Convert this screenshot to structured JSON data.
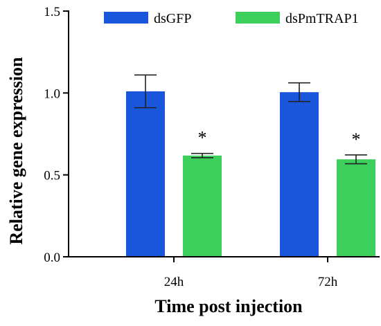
{
  "colors": {
    "dsGFP": "#1a56db",
    "dsPmTRAP1": "#3ccf5b",
    "axis": "#000000"
  },
  "chart_data": {
    "type": "bar",
    "title": "",
    "xlabel": "Time post injection",
    "ylabel": "Relative gene expression",
    "ylim": [
      0,
      1.5
    ],
    "yticks": [
      {
        "value": 0.0,
        "label": "0.0"
      },
      {
        "value": 0.5,
        "label": "0.5"
      },
      {
        "value": 1.0,
        "label": "1.0"
      },
      {
        "value": 1.5,
        "label": "1.5"
      }
    ],
    "categories": [
      "24h",
      "72h"
    ],
    "legend_position": "top",
    "series": [
      {
        "name": "dsGFP",
        "color": "#1a56db",
        "values": [
          1.01,
          1.005
        ],
        "errors": [
          0.1,
          0.057
        ],
        "annotations": [
          "",
          ""
        ]
      },
      {
        "name": "dsPmTRAP1",
        "color": "#3ccf5b",
        "values": [
          0.618,
          0.595
        ],
        "errors": [
          0.013,
          0.027
        ],
        "annotations": [
          "*",
          "*"
        ]
      }
    ]
  }
}
